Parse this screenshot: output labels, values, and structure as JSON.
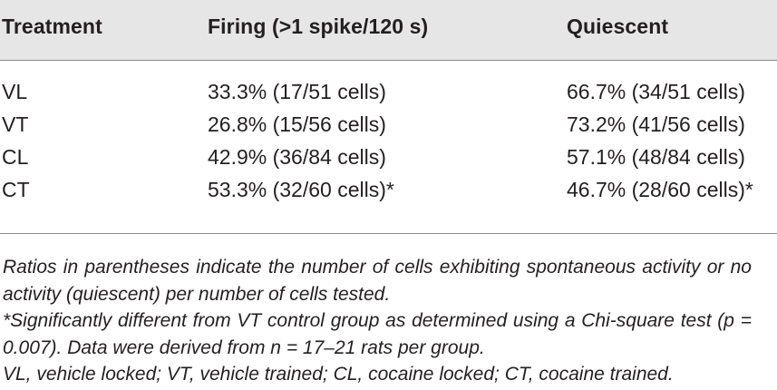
{
  "table": {
    "headers": [
      "Treatment",
      "Firing (>1 spike/120 s)",
      "Quiescent"
    ],
    "rows": [
      [
        "VL",
        "33.3% (17/51 cells)",
        "66.7% (34/51 cells)"
      ],
      [
        "VT",
        "26.8% (15/56 cells)",
        "73.2% (41/56 cells)"
      ],
      [
        "CL",
        "42.9% (36/84 cells)",
        "57.1% (48/84 cells)"
      ],
      [
        "CT",
        "53.3% (32/60 cells)*",
        "46.7% (28/60 cells)*"
      ]
    ]
  },
  "notes": {
    "note1": "Ratios in parentheses indicate the number of cells exhibiting spontaneous activity or no activity (quiescent) per number of cells tested.",
    "note2": "*Significantly different from VT control group as determined using a Chi-square test (p = 0.007). Data were derived from n = 17–21 rats per group.",
    "note3": "VL, vehicle locked; VT, vehicle trained; CL, cocaine locked; CT, cocaine trained."
  }
}
